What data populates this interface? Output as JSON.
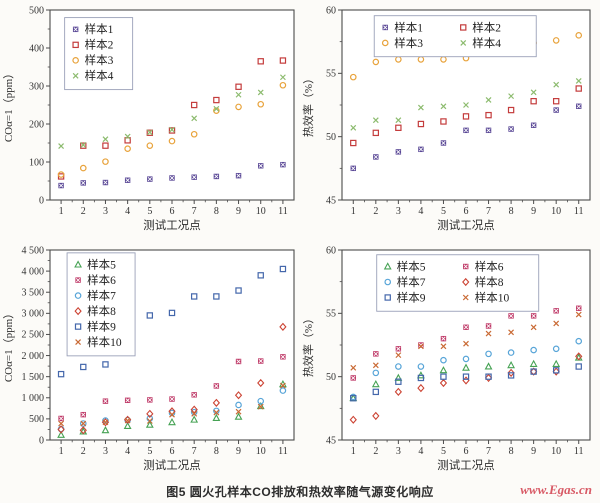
{
  "caption": "图5  圆火孔样本CO排放和热效率随气源变化响应",
  "watermark": "www.Egas.cn",
  "colors": {
    "caption": "#2d2d2d",
    "watermark": "#d85a66",
    "axis": "#4b4b4b",
    "legend_border": "#9aa0b8"
  },
  "chart_data": [
    {
      "type": "scatter",
      "position": "top-left",
      "title": "",
      "xlabel": "测试工况点",
      "ylabel": "COα=1（ppm）",
      "x": [
        1,
        2,
        3,
        4,
        5,
        6,
        7,
        8,
        9,
        10,
        11
      ],
      "xtick_labels": [
        "1",
        "2",
        "3",
        "4",
        "5",
        "6",
        "7",
        "8",
        "9",
        "10",
        "11"
      ],
      "xlim": [
        0.5,
        11.5
      ],
      "ylim": [
        0,
        500
      ],
      "yticks": [
        0,
        100,
        200,
        300,
        400,
        500
      ],
      "ytick_labels": [
        "0",
        "100",
        "200",
        "300",
        "400",
        "500"
      ],
      "grid": false,
      "legend": {
        "position": "upper-left",
        "cols": 1,
        "fx": 0.06,
        "fy": 0.04
      },
      "series": [
        {
          "name": "样本1",
          "marker": "square-x",
          "color": "#5a4896",
          "values": [
            38,
            45,
            46,
            52,
            55,
            58,
            60,
            62,
            64,
            90,
            93
          ]
        },
        {
          "name": "样本2",
          "marker": "open-square",
          "color": "#c43c3c",
          "values": [
            62,
            143,
            143,
            157,
            177,
            183,
            250,
            263,
            298,
            365,
            367
          ]
        },
        {
          "name": "样本3",
          "marker": "open-circle",
          "color": "#e8a33c",
          "values": [
            67,
            84,
            101,
            135,
            143,
            155,
            173,
            235,
            245,
            252,
            302
          ]
        },
        {
          "name": "样本4",
          "marker": "x",
          "color": "#8cbb6e",
          "values": [
            142,
            145,
            160,
            167,
            178,
            185,
            215,
            240,
            277,
            283,
            323
          ]
        }
      ]
    },
    {
      "type": "scatter",
      "position": "top-right",
      "title": "",
      "xlabel": "测试工况点",
      "ylabel": "热效率（%）",
      "x": [
        1,
        2,
        3,
        4,
        5,
        6,
        7,
        8,
        9,
        10,
        11
      ],
      "xtick_labels": [
        "1",
        "2",
        "3",
        "4",
        "5",
        "6",
        "7",
        "8",
        "9",
        "10",
        "11"
      ],
      "xlim": [
        0.5,
        11.5
      ],
      "ylim": [
        45,
        60
      ],
      "yticks": [
        45,
        50,
        55,
        60
      ],
      "ytick_labels": [
        "45",
        "50",
        "55",
        "60"
      ],
      "grid": false,
      "legend": {
        "position": "upper-center",
        "cols": 2,
        "fx": 0.13,
        "fy": 0.03
      },
      "series": [
        {
          "name": "样本1",
          "marker": "square-x",
          "color": "#5a4896",
          "values": [
            47.5,
            48.4,
            48.8,
            49.0,
            49.5,
            50.5,
            50.5,
            50.6,
            50.9,
            52.1,
            52.4
          ]
        },
        {
          "name": "样本2",
          "marker": "open-square",
          "color": "#c43c3c",
          "values": [
            49.5,
            50.3,
            50.7,
            51.0,
            51.2,
            51.6,
            51.7,
            52.1,
            52.8,
            52.8,
            53.8
          ]
        },
        {
          "name": "样本3",
          "marker": "open-circle",
          "color": "#e8a33c",
          "values": [
            54.7,
            55.9,
            56.1,
            56.1,
            56.1,
            56.2,
            56.7,
            57.1,
            57.4,
            57.6,
            58.0
          ]
        },
        {
          "name": "样本4",
          "marker": "x",
          "color": "#8cbb6e",
          "values": [
            50.7,
            51.3,
            51.3,
            52.3,
            52.4,
            52.5,
            52.9,
            53.2,
            53.5,
            54.1,
            54.4
          ]
        }
      ]
    },
    {
      "type": "scatter",
      "position": "bottom-left",
      "title": "",
      "xlabel": "测试工况点",
      "ylabel": "COα=1（ppm）",
      "x": [
        1,
        2,
        3,
        4,
        5,
        6,
        7,
        8,
        9,
        10,
        11
      ],
      "xtick_labels": [
        "1",
        "2",
        "3",
        "4",
        "5",
        "6",
        "7",
        "8",
        "9",
        "10",
        "11"
      ],
      "xlim": [
        0.5,
        11.5
      ],
      "ylim": [
        0,
        4500
      ],
      "yticks": [
        0,
        500,
        1000,
        1500,
        2000,
        2500,
        3000,
        3500,
        4000,
        4500
      ],
      "ytick_labels": [
        "0",
        "500",
        "1 000",
        "1 500",
        "2 000",
        "2 500",
        "3 000",
        "3 500",
        "4 000",
        "4 500"
      ],
      "grid": false,
      "legend": {
        "position": "upper-left",
        "cols": 1,
        "fx": 0.07,
        "fy": 0.015
      },
      "series": [
        {
          "name": "样本5",
          "marker": "open-triangle",
          "color": "#46a254",
          "values": [
            120,
            200,
            230,
            330,
            360,
            420,
            480,
            520,
            550,
            800,
            1320
          ]
        },
        {
          "name": "样本6",
          "marker": "square-x",
          "color": "#bf3a68",
          "values": [
            510,
            600,
            920,
            940,
            950,
            970,
            1070,
            1280,
            1860,
            1870,
            1970
          ]
        },
        {
          "name": "样本7",
          "marker": "open-circle",
          "color": "#58a5d8",
          "values": [
            260,
            390,
            460,
            470,
            510,
            640,
            660,
            690,
            830,
            920,
            1170
          ]
        },
        {
          "name": "样本8",
          "marker": "open-diamond",
          "color": "#cc4333",
          "values": [
            250,
            230,
            420,
            480,
            620,
            680,
            720,
            880,
            1060,
            1350,
            2680
          ]
        },
        {
          "name": "样本9",
          "marker": "open-square",
          "color": "#4467ab",
          "values": [
            1560,
            1730,
            1790,
            2220,
            2950,
            3010,
            3400,
            3400,
            3540,
            3900,
            4050
          ]
        },
        {
          "name": "样本10",
          "marker": "x",
          "color": "#c96a35",
          "values": [
            390,
            390,
            420,
            460,
            450,
            600,
            620,
            650,
            670,
            790,
            1290
          ]
        }
      ]
    },
    {
      "type": "scatter",
      "position": "bottom-right",
      "title": "",
      "xlabel": "测试工况点",
      "ylabel": "热效率（%）",
      "x": [
        1,
        2,
        3,
        4,
        5,
        6,
        7,
        8,
        9,
        10,
        11
      ],
      "xtick_labels": [
        "1",
        "2",
        "3",
        "4",
        "5",
        "6",
        "7",
        "8",
        "9",
        "10",
        "11"
      ],
      "xlim": [
        0.5,
        11.5
      ],
      "ylim": [
        45,
        60
      ],
      "yticks": [
        45,
        50,
        55,
        60
      ],
      "ytick_labels": [
        "45",
        "50",
        "55",
        "60"
      ],
      "grid": false,
      "legend": {
        "position": "upper-center",
        "cols": 2,
        "fx": 0.14,
        "fy": 0.025
      },
      "series": [
        {
          "name": "样本5",
          "marker": "open-triangle",
          "color": "#46a254",
          "values": [
            48.3,
            49.4,
            49.9,
            50.1,
            50.5,
            50.7,
            50.8,
            50.9,
            51.0,
            51.0,
            51.5
          ]
        },
        {
          "name": "样本6",
          "marker": "square-x",
          "color": "#bf3a68",
          "values": [
            49.9,
            51.8,
            52.2,
            52.5,
            53.0,
            53.9,
            54.0,
            54.8,
            54.8,
            55.2,
            55.4
          ]
        },
        {
          "name": "样本7",
          "marker": "open-circle",
          "color": "#58a5d8",
          "values": [
            48.4,
            50.3,
            50.8,
            50.8,
            51.3,
            51.4,
            51.8,
            51.9,
            52.1,
            52.2,
            52.8
          ]
        },
        {
          "name": "样本8",
          "marker": "open-diamond",
          "color": "#cc4333",
          "values": [
            46.6,
            46.9,
            48.8,
            49.1,
            49.5,
            49.7,
            49.9,
            50.3,
            50.4,
            50.4,
            51.6
          ]
        },
        {
          "name": "样本9",
          "marker": "open-square",
          "color": "#4467ab",
          "values": [
            48.3,
            48.8,
            49.6,
            49.9,
            50.0,
            50.0,
            50.0,
            50.1,
            50.4,
            50.5,
            50.8
          ]
        },
        {
          "name": "样本10",
          "marker": "x",
          "color": "#c96a35",
          "values": [
            50.7,
            50.9,
            51.7,
            52.4,
            52.4,
            52.6,
            53.4,
            53.5,
            53.9,
            54.2,
            54.9
          ]
        }
      ]
    }
  ]
}
